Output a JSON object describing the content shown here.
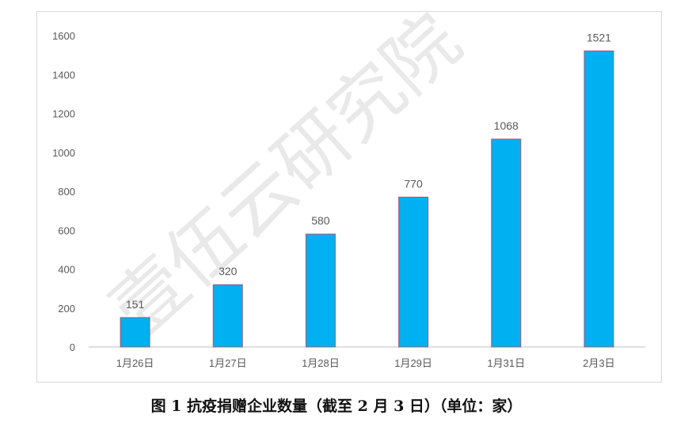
{
  "caption": "图 1  抗疫捐赠企业数量（截至 2 月 3 日）（单位：家）",
  "watermark": "壹伍云研究院",
  "colors": {
    "bar": "#00b0f0",
    "bar_edge": "#a05a7a",
    "axis": "#bfbfbf",
    "text": "#595959"
  },
  "chart_data": {
    "type": "bar",
    "categories": [
      "1月26日",
      "1月27日",
      "1月28日",
      "1月29日",
      "1月31日",
      "2月3日"
    ],
    "values": [
      151,
      320,
      580,
      770,
      1068,
      1521
    ],
    "data_labels": [
      "151",
      "320",
      "580",
      "770",
      "1068",
      "1521"
    ],
    "title": "",
    "xlabel": "",
    "ylabel": "",
    "ylim": [
      0,
      1600
    ],
    "yticks": [
      0,
      200,
      400,
      600,
      800,
      1000,
      1200,
      1400,
      1600
    ],
    "grid": false,
    "legend": "none"
  }
}
